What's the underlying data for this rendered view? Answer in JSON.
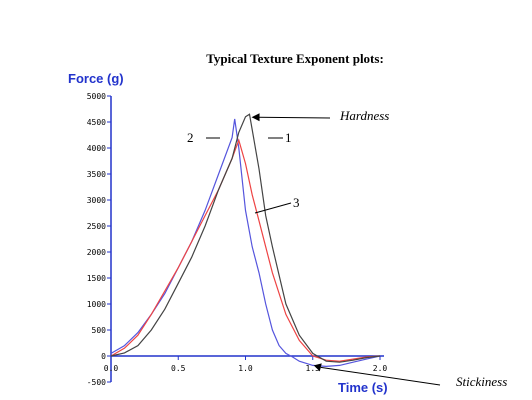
{
  "chart_data": {
    "type": "line",
    "title": "Typical Texture Exponent plots:",
    "xlabel": "Time (s)",
    "ylabel": "Force (g)",
    "xlim": [
      0,
      2
    ],
    "ylim": [
      -500,
      5000
    ],
    "x_ticks": [
      {
        "value": 0,
        "label": "0.0"
      },
      {
        "value": 0.5,
        "label": "0.5"
      },
      {
        "value": 1.0,
        "label": "1.0"
      },
      {
        "value": 1.5,
        "label": "1.5"
      },
      {
        "value": 2.0,
        "label": "2.0"
      }
    ],
    "y_ticks": [
      {
        "value": -500,
        "label": "-500"
      },
      {
        "value": 0,
        "label": "0"
      },
      {
        "value": 500,
        "label": "500"
      },
      {
        "value": 1000,
        "label": "1000"
      },
      {
        "value": 1500,
        "label": "1500"
      },
      {
        "value": 2000,
        "label": "2000"
      },
      {
        "value": 2500,
        "label": "2500"
      },
      {
        "value": 3000,
        "label": "3000"
      },
      {
        "value": 3500,
        "label": "3500"
      },
      {
        "value": 4000,
        "label": "4000"
      },
      {
        "value": 4500,
        "label": "4500"
      },
      {
        "value": 5000,
        "label": "5000"
      }
    ],
    "grid": false,
    "series": [
      {
        "color": "#5555dd",
        "x": [
          0,
          0.1,
          0.2,
          0.3,
          0.4,
          0.5,
          0.6,
          0.7,
          0.8,
          0.9,
          0.92,
          0.95,
          1.0,
          1.05,
          1.1,
          1.15,
          1.2,
          1.25,
          1.3,
          1.35,
          1.4,
          1.5,
          1.6,
          1.7,
          1.8,
          1.9,
          2.0
        ],
        "y": [
          50,
          200,
          450,
          800,
          1200,
          1700,
          2200,
          2800,
          3500,
          4200,
          4560,
          4000,
          2800,
          2100,
          1600,
          1000,
          500,
          200,
          50,
          -20,
          -100,
          -180,
          -200,
          -180,
          -120,
          -60,
          0
        ]
      },
      {
        "color": "#ee4444",
        "x": [
          0,
          0.1,
          0.2,
          0.3,
          0.4,
          0.5,
          0.6,
          0.7,
          0.8,
          0.9,
          0.95,
          1.0,
          1.05,
          1.1,
          1.15,
          1.2,
          1.3,
          1.4,
          1.5,
          1.6,
          1.7,
          1.8,
          1.9,
          2.0
        ],
        "y": [
          0,
          150,
          400,
          800,
          1250,
          1700,
          2200,
          2700,
          3200,
          3800,
          4150,
          3700,
          3100,
          2600,
          2100,
          1600,
          800,
          300,
          0,
          -80,
          -100,
          -60,
          -20,
          0
        ]
      },
      {
        "color": "#444444",
        "x": [
          0,
          0.1,
          0.2,
          0.3,
          0.4,
          0.5,
          0.6,
          0.7,
          0.8,
          0.9,
          0.95,
          1.0,
          1.03,
          1.1,
          1.15,
          1.2,
          1.3,
          1.4,
          1.5,
          1.6,
          1.7,
          1.8,
          1.9,
          2.0
        ],
        "y": [
          0,
          60,
          200,
          500,
          900,
          1400,
          1900,
          2500,
          3200,
          3800,
          4300,
          4600,
          4650,
          3600,
          2700,
          2100,
          1000,
          400,
          50,
          -100,
          -120,
          -80,
          -30,
          0
        ]
      }
    ],
    "annotations": [
      {
        "text": "Hardness",
        "x": 1.03,
        "y": 4650,
        "style": "italic"
      },
      {
        "text": "Stickiness",
        "x": 1.5,
        "y": -180,
        "style": "italic"
      },
      {
        "text": "1",
        "x": 1.03,
        "y": 4650
      },
      {
        "text": "2",
        "x": 0.92,
        "y": 4560
      },
      {
        "text": "3",
        "x": 1.15,
        "y": 2700
      }
    ]
  }
}
